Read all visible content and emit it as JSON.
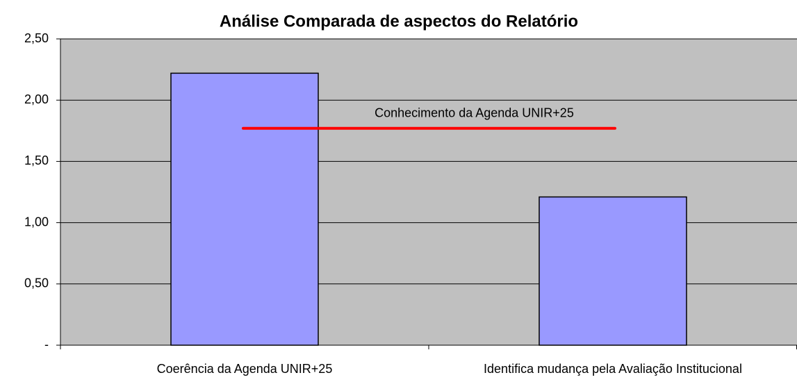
{
  "chart_data": {
    "type": "bar",
    "title": "Análise Comparada de aspectos do Relatório",
    "categories": [
      "Coerência da Agenda UNIR+25",
      "Identifica mudança pela Avaliação Institucional"
    ],
    "values": [
      2.22,
      1.21
    ],
    "color": "#9999ff",
    "ylim": [
      0,
      2.5
    ],
    "yticks": [
      {
        "value": 0,
        "label": "-"
      },
      {
        "value": 0.5,
        "label": "0,50"
      },
      {
        "value": 1,
        "label": "1,00"
      },
      {
        "value": 1.5,
        "label": "1,50"
      },
      {
        "value": 2,
        "label": "2,00"
      },
      {
        "value": 2.5,
        "label": "2,50"
      }
    ],
    "grid": true,
    "reference_line": {
      "label": "Conhecimento da Agenda UNIR+25",
      "value": 1.77,
      "color": "#ff0000"
    }
  }
}
